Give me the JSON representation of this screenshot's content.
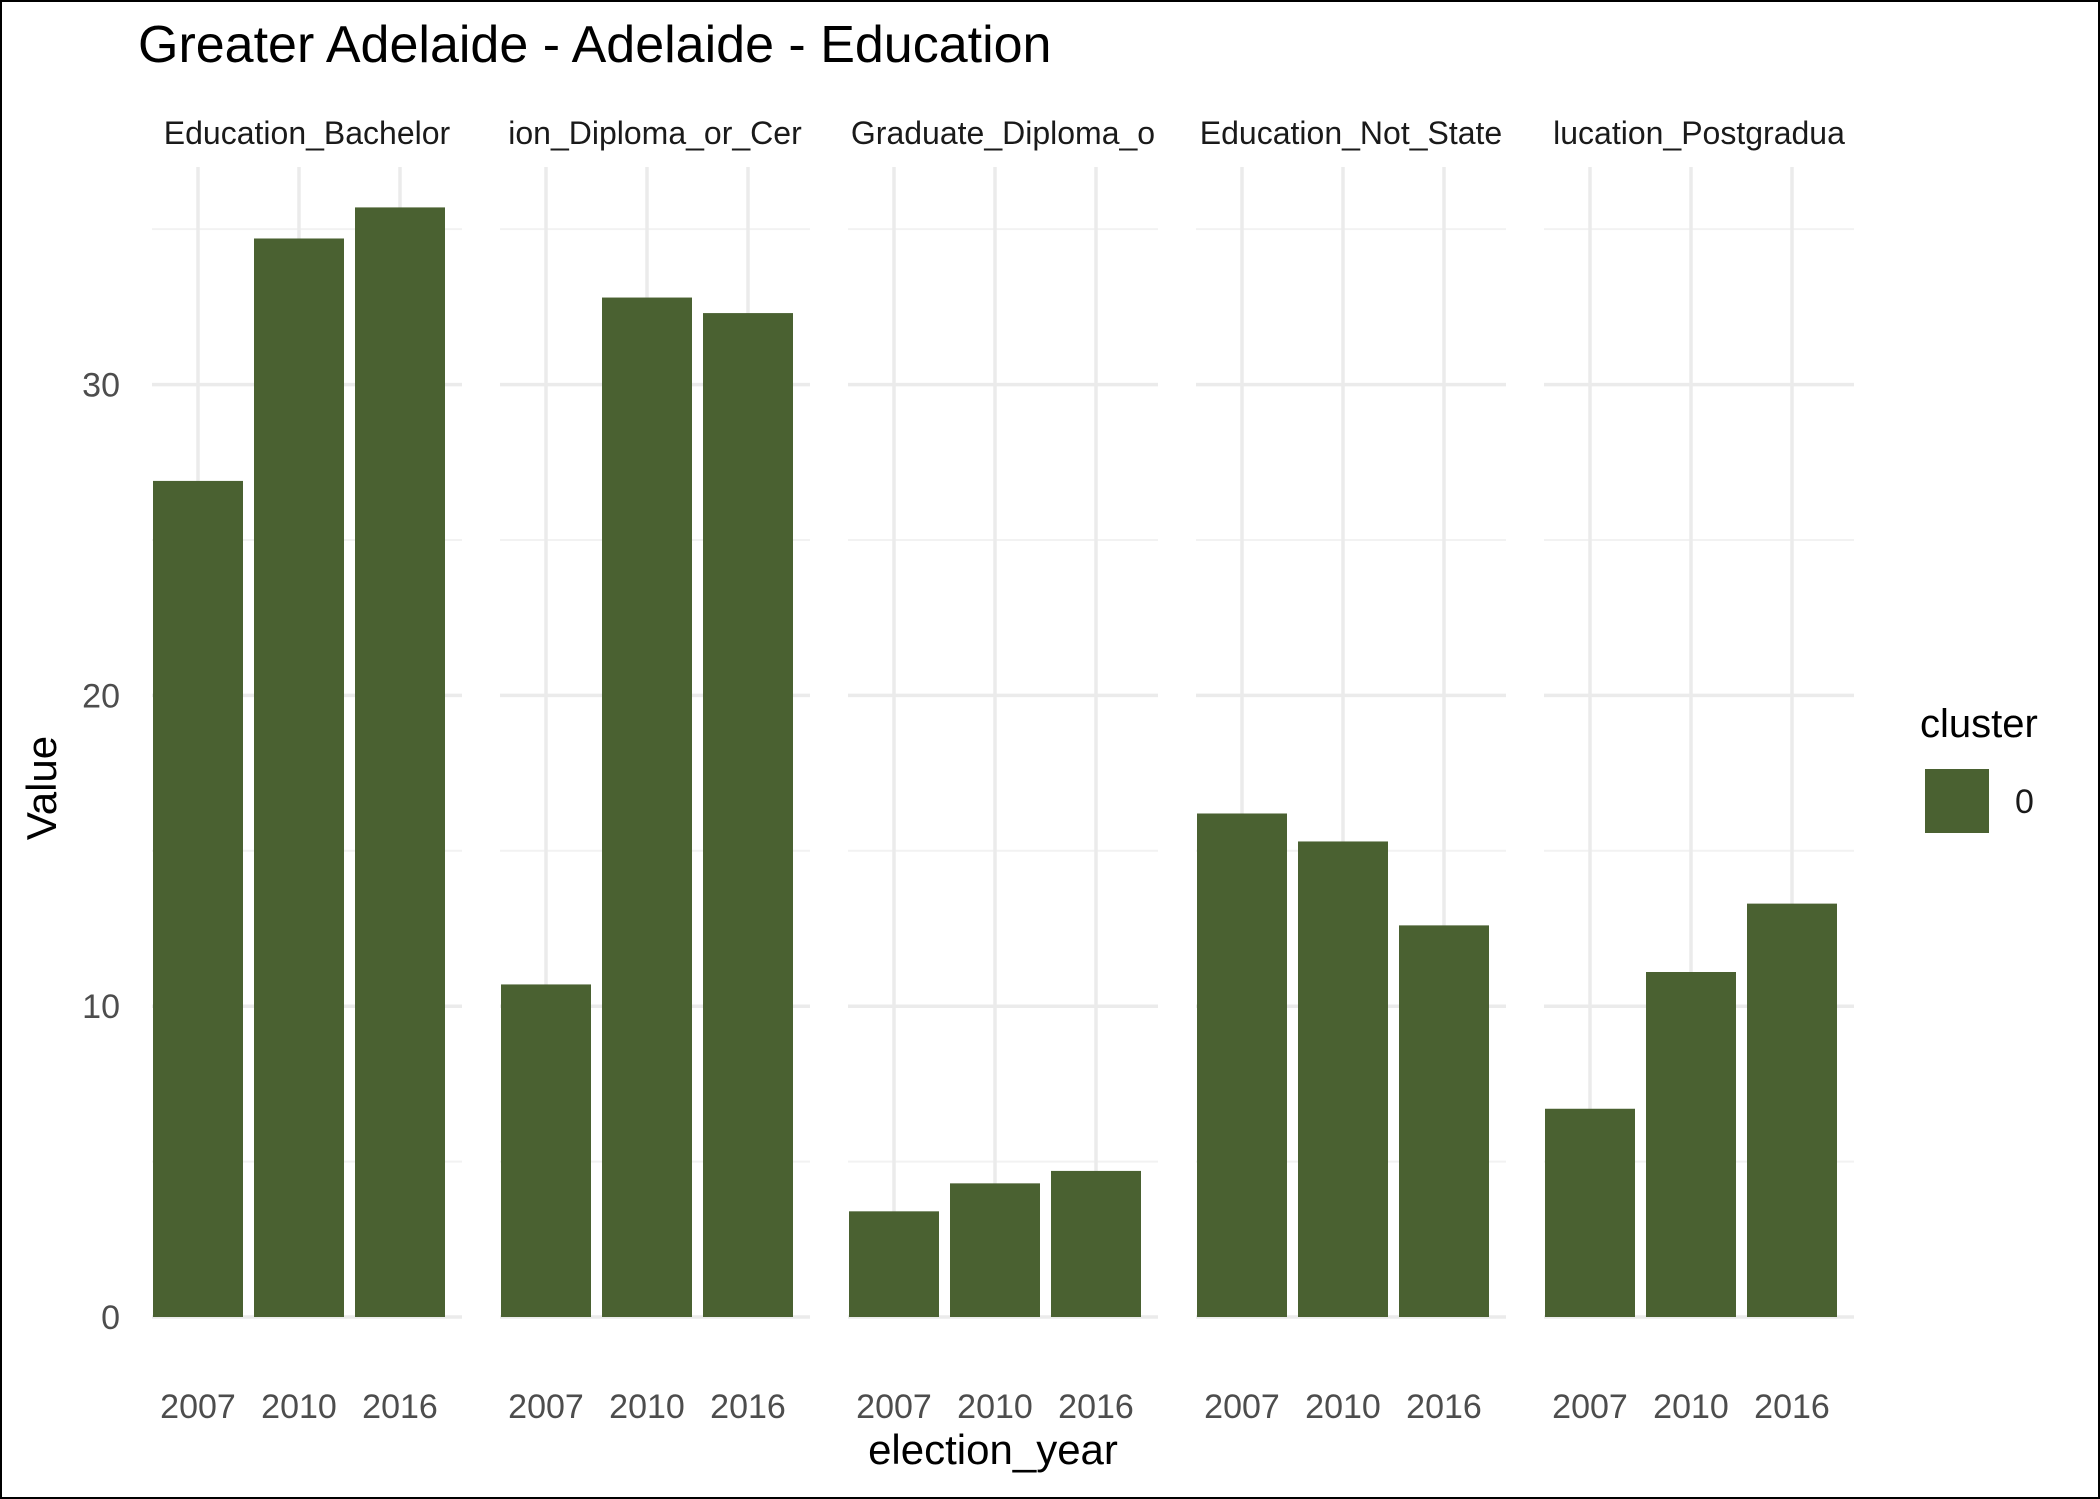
{
  "chart_data": {
    "type": "bar",
    "title": "Greater Adelaide - Adelaide - Education",
    "xlabel": "election_year",
    "ylabel": "Value",
    "categories": [
      "2007",
      "2010",
      "2016"
    ],
    "ylim": [
      0,
      37
    ],
    "yticks": [
      0,
      10,
      20,
      30
    ],
    "grid": true,
    "bar_color": "#4a6131",
    "legend": {
      "title": "cluster",
      "placement": "right",
      "entries": [
        {
          "label": "0",
          "color": "#4a6131"
        }
      ]
    },
    "facets": [
      {
        "strip_label": "Education_Bachelor",
        "values": [
          26.9,
          34.7,
          35.7
        ]
      },
      {
        "strip_label": "ion_Diploma_or_Cer",
        "values": [
          10.7,
          32.8,
          32.3
        ]
      },
      {
        "strip_label": "Graduate_Diploma_o",
        "values": [
          3.4,
          4.3,
          4.7
        ]
      },
      {
        "strip_label": "Education_Not_State",
        "values": [
          16.2,
          15.3,
          12.6
        ]
      },
      {
        "strip_label": "lucation_Postgradua",
        "values": [
          6.7,
          11.1,
          13.3
        ]
      }
    ]
  }
}
